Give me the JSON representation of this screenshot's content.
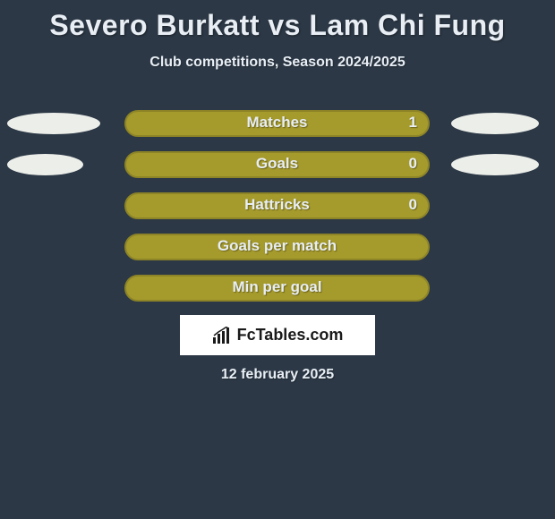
{
  "colors": {
    "background": "#2c3846",
    "text_light": "#e8eef4",
    "title_color": "#e8eef4",
    "bar_fill": "#a59a2c",
    "bar_border": "#8d8427",
    "ellipse_fill": "#eceee9",
    "brand_bg": "#ffffff",
    "brand_text": "#1a1a1a"
  },
  "title": "Severo Burkatt vs Lam Chi Fung",
  "subtitle": "Club competitions, Season 2024/2025",
  "stats": [
    {
      "label": "Matches",
      "value": "1",
      "show_value": true,
      "left_ellipse_w": 104,
      "right_ellipse_w": 98
    },
    {
      "label": "Goals",
      "value": "0",
      "show_value": true,
      "left_ellipse_w": 85,
      "right_ellipse_w": 98
    },
    {
      "label": "Hattricks",
      "value": "0",
      "show_value": true,
      "left_ellipse_w": 0,
      "right_ellipse_w": 0
    },
    {
      "label": "Goals per match",
      "value": "",
      "show_value": false,
      "left_ellipse_w": 0,
      "right_ellipse_w": 0
    },
    {
      "label": "Min per goal",
      "value": "",
      "show_value": false,
      "left_ellipse_w": 0,
      "right_ellipse_w": 0
    }
  ],
  "brand": "FcTables.com",
  "footer_date": "12 february 2025"
}
